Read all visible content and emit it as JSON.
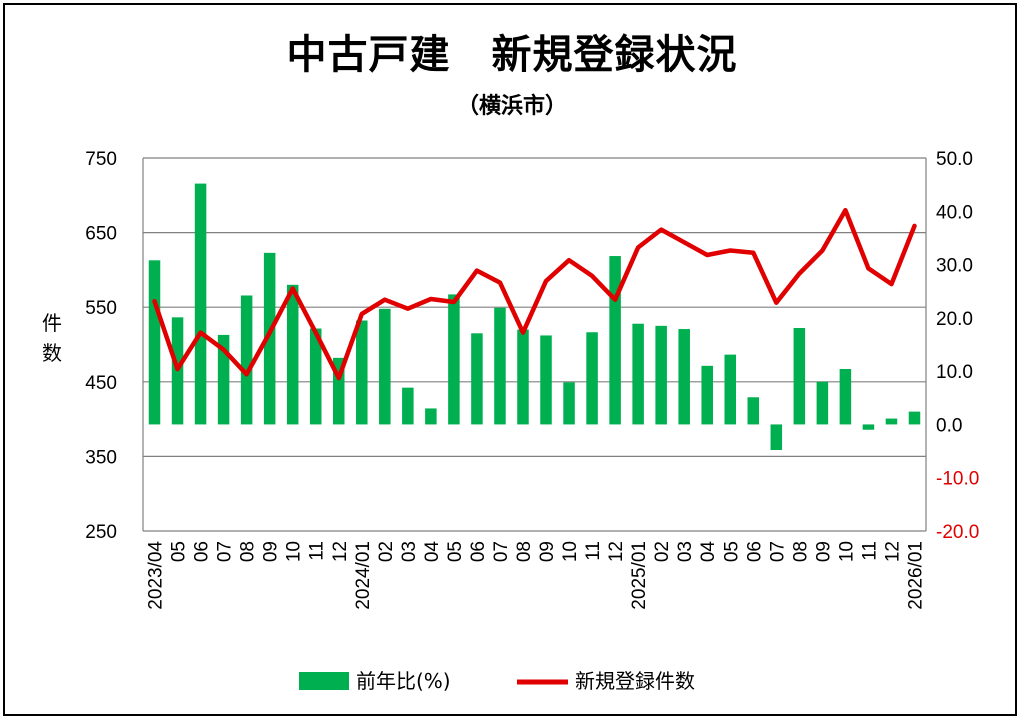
{
  "chart_data": {
    "type": "bar+line",
    "title": "中古戸建　新規登録状況",
    "subtitle": "（横浜市）",
    "ylabel_left": "件数",
    "ylim_left": [
      250,
      750
    ],
    "yticks_left": [
      "750",
      "650",
      "550",
      "450",
      "350",
      "250"
    ],
    "ylim_right": [
      -20,
      50
    ],
    "yticks_right": [
      "50.0",
      "40.0",
      "30.0",
      "20.0",
      "10.0",
      "0.0",
      "-10.0",
      "-20.0"
    ],
    "negative_tick_color": "#e00000",
    "grid": "horizontal",
    "categories": [
      "2023/04",
      "05",
      "06",
      "07",
      "08",
      "09",
      "10",
      "11",
      "12",
      "2024/01",
      "02",
      "03",
      "04",
      "05",
      "06",
      "07",
      "08",
      "09",
      "10",
      "11",
      "12",
      "2025/01",
      "02",
      "03",
      "04",
      "05",
      "06",
      "07",
      "08",
      "09",
      "10",
      "11",
      "12",
      "2026/01"
    ],
    "series": [
      {
        "name": "前年比(%)",
        "type": "bar",
        "axis": "right",
        "color": "#00b050",
        "values": [
          30.8,
          20.1,
          45.2,
          16.8,
          24.2,
          32.2,
          26.2,
          18.0,
          12.5,
          19.5,
          21.7,
          6.9,
          3.0,
          24.4,
          17.1,
          21.9,
          17.8,
          16.7,
          7.9,
          17.3,
          31.6,
          18.9,
          18.5,
          17.9,
          11.0,
          13.1,
          5.1,
          -4.8,
          18.1,
          8.0,
          10.4,
          -1.0,
          1.1,
          2.4
        ]
      },
      {
        "name": "新規登録件数",
        "type": "line",
        "axis": "left",
        "color": "#e00000",
        "values": [
          558,
          467,
          516,
          493,
          460,
          516,
          575,
          516,
          455,
          541,
          560,
          548,
          561,
          557,
          599,
          583,
          516,
          585,
          613,
          592,
          560,
          630,
          654,
          637,
          620,
          626,
          623,
          556,
          595,
          626,
          680,
          602,
          581,
          659
        ]
      }
    ],
    "legend": {
      "position": "bottom",
      "bar_label": "前年比(%)",
      "line_label": "新規登録件数"
    }
  }
}
